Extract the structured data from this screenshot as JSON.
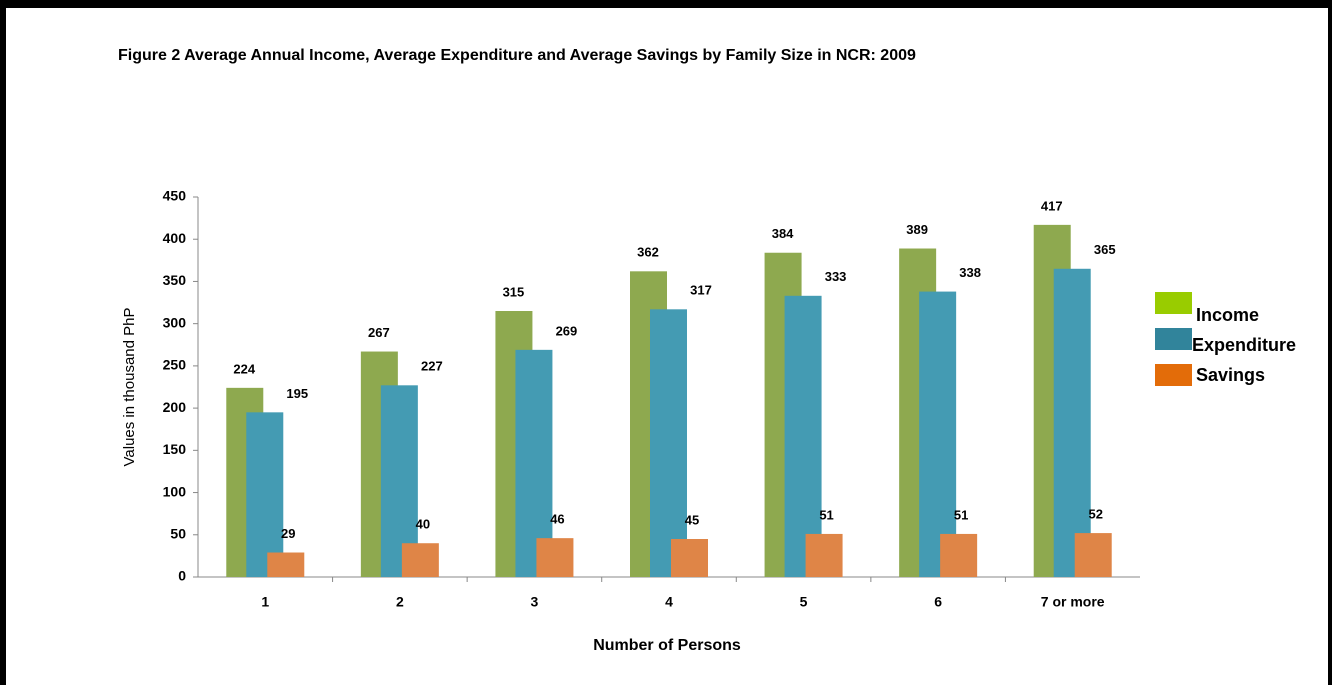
{
  "chart_data": {
    "type": "bar",
    "title": "Figure 2 Average Annual Income, Average Expenditure and Average Savings by Family Size in NCR: 2009",
    "x_label": "Number of Persons",
    "y_label": "Values in thousand PhP",
    "categories": [
      "1",
      "2",
      "3",
      "4",
      "5",
      "6",
      "7 or more"
    ],
    "series": [
      {
        "name": "Income",
        "color": "#8ea94f",
        "legend_color": "#99cc00",
        "values": [
          224,
          267,
          315,
          362,
          384,
          389,
          417
        ]
      },
      {
        "name": "Expenditure",
        "color": "#449bb3",
        "legend_color": "#31849b",
        "values": [
          195,
          227,
          269,
          317,
          333,
          338,
          365
        ]
      },
      {
        "name": "Savings",
        "color": "#df8547",
        "legend_color": "#e36c09",
        "values": [
          29,
          40,
          46,
          45,
          51,
          51,
          52
        ]
      }
    ],
    "ylim": [
      0,
      450
    ],
    "yticks": [
      0,
      50,
      100,
      150,
      200,
      250,
      300,
      350,
      400,
      450
    ],
    "grid": false,
    "legend": "right"
  }
}
